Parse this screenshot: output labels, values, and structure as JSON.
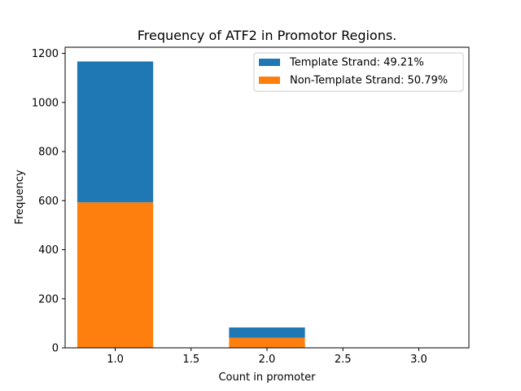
{
  "chart_data": {
    "type": "bar",
    "stacked": true,
    "title": "Frequency of ATF2 in Promotor Regions.",
    "xlabel": "Count in promoter",
    "ylabel": "Frequency",
    "xlim": [
      0.67,
      3.33
    ],
    "ylim": [
      0,
      1225
    ],
    "xticks": [
      1.0,
      1.5,
      2.0,
      2.5,
      3.0
    ],
    "xtick_labels": [
      "1.0",
      "1.5",
      "2.0",
      "2.5",
      "3.0"
    ],
    "yticks": [
      0,
      200,
      400,
      600,
      800,
      1000,
      1200
    ],
    "ytick_labels": [
      "0",
      "200",
      "400",
      "600",
      "800",
      "1000",
      "1200"
    ],
    "bar_width": 0.5,
    "x": [
      1,
      2,
      3
    ],
    "series": [
      {
        "name": "Non-Template Strand: 50.79%",
        "color": "#ff7f0e",
        "values": [
          593,
          41,
          0
        ]
      },
      {
        "name": "Template Strand: 49.21%",
        "color": "#1f77b4",
        "values": [
          574,
          42,
          0
        ]
      }
    ],
    "legend": {
      "position": "top-right",
      "order": [
        "Template Strand: 49.21%",
        "Non-Template Strand: 50.79%"
      ]
    },
    "grid": false
  }
}
